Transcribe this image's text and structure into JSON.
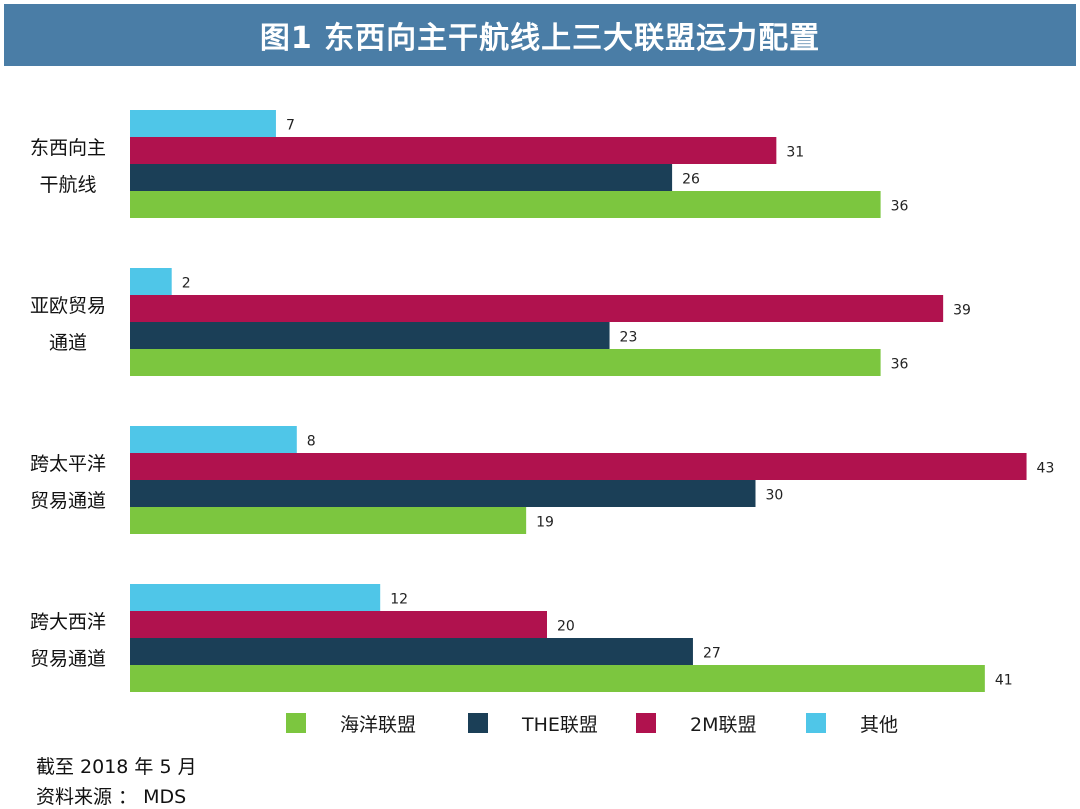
{
  "header": {
    "title": "图1   东西向主干航线上三大联盟运力配置"
  },
  "chart_data": {
    "type": "bar",
    "orientation": "horizontal",
    "categories": [
      [
        "东西向主",
        "干航线"
      ],
      [
        "亚欧贸易",
        "通道"
      ],
      [
        "跨太平洋",
        "贸易通道"
      ],
      [
        "跨大西洋",
        "贸易通道"
      ]
    ],
    "series": [
      {
        "name": "其他",
        "color": "#4fc6e8",
        "values": [
          7,
          2,
          8,
          12
        ]
      },
      {
        "name": "2M联盟",
        "color": "#b0124e",
        "values": [
          31,
          39,
          43,
          20
        ]
      },
      {
        "name": "THE联盟",
        "color": "#1b3f57",
        "values": [
          26,
          23,
          30,
          27
        ]
      },
      {
        "name": "海洋联盟",
        "color": "#7cc63f",
        "values": [
          36,
          36,
          19,
          41
        ]
      }
    ],
    "legend_order": [
      "海洋联盟",
      "THE联盟",
      "2M联盟",
      "其他"
    ],
    "xlim": [
      0,
      43
    ],
    "grid": false,
    "legend_position": "bottom"
  },
  "footnotes": {
    "date": "截至 2018 年 5 月",
    "source": "资料来源 ： MDS"
  }
}
